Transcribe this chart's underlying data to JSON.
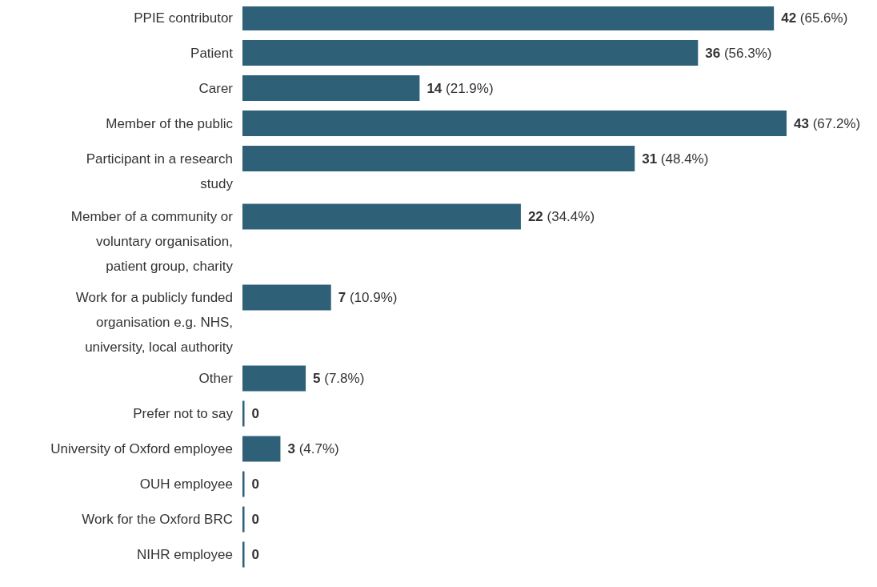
{
  "chart_data": {
    "type": "bar",
    "orientation": "horizontal",
    "categories": [
      "PPIE contributor",
      "Patient",
      "Carer",
      "Member of the public",
      "Participant in a research study",
      "Member of a community or voluntary organisation, patient group, charity",
      "Work for a publicly funded organisation e.g. NHS, university, local authority",
      "Other",
      "Prefer not to say",
      "University of Oxford employee",
      "OUH employee",
      "Work for the Oxford BRC",
      "NIHR employee"
    ],
    "values": [
      42,
      36,
      14,
      43,
      31,
      22,
      7,
      5,
      0,
      3,
      0,
      0,
      0
    ],
    "value_labels": [
      "42 (65.6%)",
      "36 (56.3%)",
      "14 (21.9%)",
      "43 (67.2%)",
      "31 (48.4%)",
      "22 (34.4%)",
      "7 (10.9%)",
      "5 (7.8%)",
      "0",
      "3 (4.7%)",
      "0",
      "0",
      "0"
    ],
    "color": "#2e6078"
  }
}
